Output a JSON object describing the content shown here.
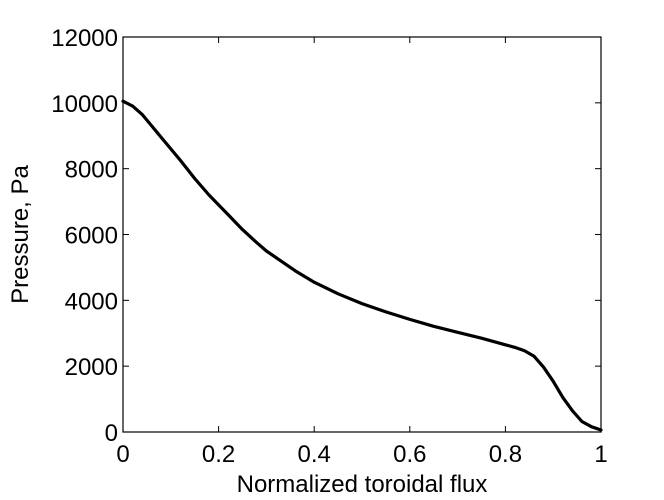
{
  "chart_data": {
    "type": "line",
    "title": "",
    "xlabel": "Normalized toroidal flux",
    "ylabel": "Pressure, Pa",
    "xlim": [
      0,
      1
    ],
    "ylim": [
      0,
      12000
    ],
    "xticks": [
      0,
      0.2,
      0.4,
      0.6,
      0.8,
      1
    ],
    "xtick_labels": [
      "0",
      "0.2",
      "0.4",
      "0.6",
      "0.8",
      "1"
    ],
    "yticks": [
      0,
      2000,
      4000,
      6000,
      8000,
      10000,
      12000
    ],
    "ytick_labels": [
      "0",
      "2000",
      "4000",
      "6000",
      "8000",
      "10000",
      "12000"
    ],
    "grid": false,
    "legend": "none",
    "line_color": "#000000",
    "series": [
      {
        "x": [
          0,
          0.02,
          0.04,
          0.06,
          0.08,
          0.1,
          0.12,
          0.15,
          0.18,
          0.2,
          0.22,
          0.25,
          0.28,
          0.3,
          0.33,
          0.36,
          0.4,
          0.45,
          0.5,
          0.55,
          0.6,
          0.65,
          0.7,
          0.75,
          0.8,
          0.82,
          0.84,
          0.86,
          0.88,
          0.9,
          0.92,
          0.94,
          0.96,
          0.98,
          1.0
        ],
        "y": [
          10050,
          9900,
          9650,
          9300,
          8950,
          8600,
          8250,
          7700,
          7200,
          6900,
          6600,
          6150,
          5750,
          5500,
          5200,
          4900,
          4550,
          4200,
          3900,
          3650,
          3420,
          3210,
          3030,
          2850,
          2650,
          2570,
          2470,
          2300,
          1970,
          1540,
          1050,
          650,
          320,
          160,
          60
        ]
      }
    ]
  }
}
